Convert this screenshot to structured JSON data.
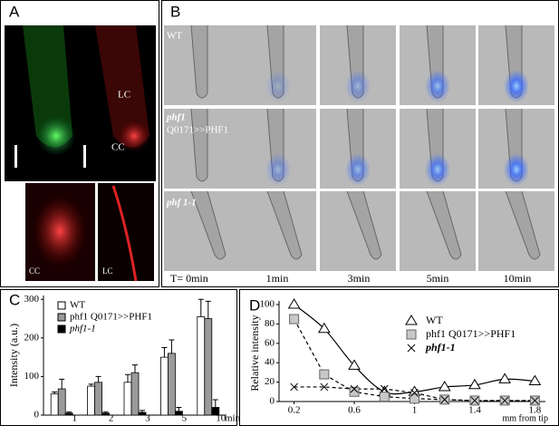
{
  "panel_a": {
    "label": "A",
    "labels": [
      "LC",
      "CC",
      "CC",
      "LC"
    ]
  },
  "panel_b": {
    "label": "B",
    "rows": [
      "WT",
      "phf1",
      "Q0171>>PHF1",
      "phf 1-1"
    ],
    "times": [
      "T= 0min",
      "1min",
      "3min",
      "5min",
      "10min"
    ]
  },
  "chart_data": [
    {
      "type": "bar",
      "label": "C",
      "ylabel": "Intensity (a.u.)",
      "xlabel": "min",
      "categories": [
        "1",
        "2",
        "3",
        "5",
        "10"
      ],
      "ylim": [
        0,
        310
      ],
      "yticks": [
        0,
        100,
        200,
        300
      ],
      "series": [
        {
          "name": "WT",
          "color": "#ffffff",
          "values": [
            55,
            75,
            85,
            150,
            255
          ],
          "errors": [
            5,
            5,
            20,
            25,
            45
          ]
        },
        {
          "name": "phf1 Q0171>>PHF1",
          "color": "#9a9a9a",
          "values": [
            68,
            85,
            110,
            160,
            250
          ],
          "errors": [
            25,
            15,
            20,
            35,
            45
          ]
        },
        {
          "name": "phf1-1",
          "color": "#000000",
          "values": [
            5,
            5,
            7,
            10,
            20
          ],
          "errors": [
            3,
            3,
            5,
            10,
            20
          ]
        }
      ]
    },
    {
      "type": "line",
      "label": "D",
      "ylabel": "Relative intensity",
      "xlabel": "mm from tip",
      "x": [
        0.2,
        0.4,
        0.6,
        0.8,
        1.0,
        1.2,
        1.4,
        1.6,
        1.8
      ],
      "xlim": [
        0.1,
        1.9
      ],
      "xticks": [
        0.2,
        0.6,
        1,
        1.4,
        1.8
      ],
      "ylim": [
        0,
        100
      ],
      "yticks": [
        0,
        20,
        40,
        60,
        80,
        100
      ],
      "series": [
        {
          "name": "WT",
          "color": "#000000",
          "marker": "triangle",
          "dashed": false,
          "values": [
            100,
            75,
            37,
            10,
            10,
            15,
            17,
            23,
            21
          ]
        },
        {
          "name": "phf1 Q0171>>PHF1",
          "color": "#000000",
          "marker": "square",
          "dashed": true,
          "values": [
            85,
            28,
            10,
            5,
            3,
            2,
            1,
            1,
            1
          ]
        },
        {
          "name": "phf1-1",
          "color": "#000000",
          "marker": "x",
          "dashed": true,
          "values": [
            15,
            15,
            13,
            13,
            9,
            2,
            1,
            1,
            1
          ]
        }
      ]
    }
  ]
}
